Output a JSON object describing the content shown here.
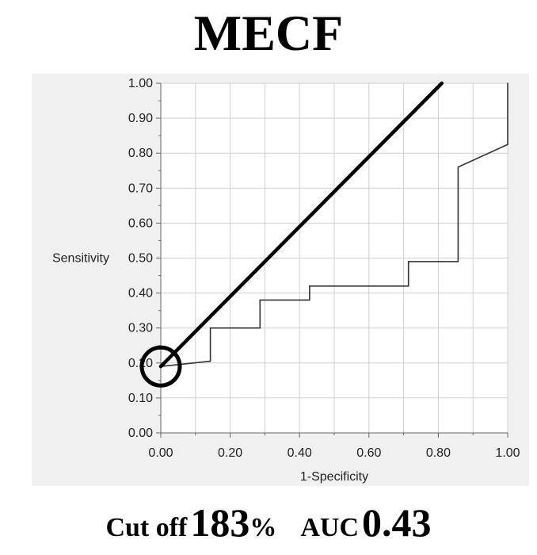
{
  "title": "MECF",
  "footer": {
    "cutoff_label": "Cut off",
    "cutoff_value": "183",
    "cutoff_unit": "%",
    "auc_label": "AUC",
    "auc_value": "0.43"
  },
  "chart_data": {
    "type": "line",
    "xlabel": "1-Specificity",
    "ylabel": "Sensitivity",
    "xlim": [
      0,
      1
    ],
    "ylim": [
      0,
      1
    ],
    "grid": true,
    "xticks": [
      "0.00",
      "0.20",
      "0.40",
      "0.60",
      "0.80",
      "1.00"
    ],
    "yticks": [
      "0.00",
      "0.10",
      "0.20",
      "0.30",
      "0.40",
      "0.50",
      "0.60",
      "0.70",
      "0.80",
      "0.90",
      "1.00"
    ],
    "series": [
      {
        "x": [
          0.0,
          0.143,
          0.143,
          0.286,
          0.286,
          0.429,
          0.429,
          0.714,
          0.714,
          0.857,
          0.857,
          1.0,
          1.0
        ],
        "y": [
          0.19,
          0.205,
          0.3,
          0.3,
          0.38,
          0.38,
          0.42,
          0.42,
          0.49,
          0.49,
          0.76,
          0.825,
          1.0
        ],
        "color": "#333333"
      },
      {
        "x": [
          0.0,
          0.81
        ],
        "y": [
          0.19,
          1.0
        ],
        "color": "#000000"
      }
    ],
    "annotations": [
      {
        "type": "circle",
        "x": 0.0,
        "y": 0.19
      }
    ],
    "colors": {
      "plot_background": "#f0f0f0",
      "grid": "#d0d0d0"
    }
  }
}
